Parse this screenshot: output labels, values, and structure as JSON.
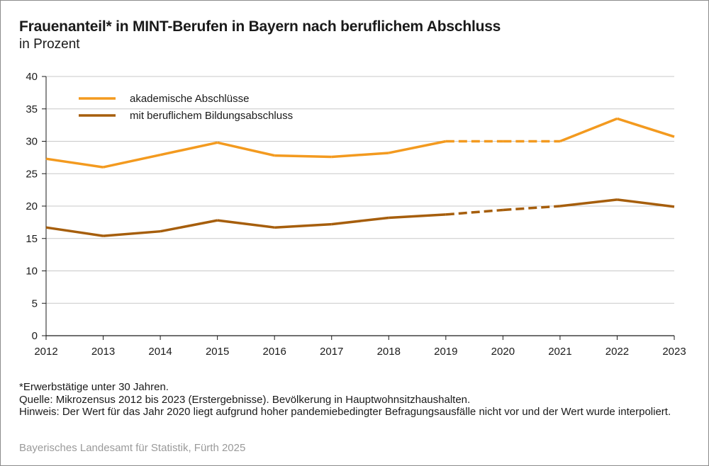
{
  "header": {
    "title": "Frauenanteil* in MINT-Berufen in Bayern nach beruflichem Abschluss",
    "subtitle": "in Prozent"
  },
  "footnotes": {
    "asterisk": "*Erwerbstätige unter 30 Jahren.",
    "source": "Quelle: Mikrozensus 2012 bis 2023 (Erstergebnisse). Bevölkerung in Hauptwohnsitzhaushalten.",
    "hint": "Hinweis: Der Wert für das Jahr 2020 liegt aufgrund hoher pandemiebedingter Befragungsausfälle nicht vor und der Wert wurde interpoliert."
  },
  "publisher": "Bayerisches Landesamt für Statistik, Fürth 2025",
  "colors": {
    "akademisch": "#f39a1f",
    "beruflich": "#a65e0c",
    "grid": "#c8c8c8",
    "axis": "#1a1a1a"
  },
  "chart_data": {
    "type": "line",
    "title": "Frauenanteil* in MINT-Berufen in Bayern nach beruflichem Abschluss",
    "subtitle": "in Prozent",
    "xlabel": "",
    "ylabel": "",
    "x": [
      "2012",
      "2013",
      "2014",
      "2015",
      "2016",
      "2017",
      "2018",
      "2019",
      "2020",
      "2021",
      "2022",
      "2023"
    ],
    "ylim": [
      0,
      40
    ],
    "yticks": [
      "0",
      "5",
      "10",
      "15",
      "20",
      "25",
      "30",
      "35",
      "40"
    ],
    "grid": true,
    "legend_position": "top-left",
    "interpolated_years": [
      "2020"
    ],
    "series": [
      {
        "name": "akademische Abschlüsse",
        "color": "#f39a1f",
        "values": [
          27.3,
          26.0,
          27.9,
          29.8,
          27.8,
          27.6,
          28.2,
          30.0,
          30.0,
          30.0,
          33.5,
          30.7
        ]
      },
      {
        "name": "mit beruflichem Bildungsabschluss",
        "color": "#a65e0c",
        "values": [
          16.7,
          15.4,
          16.1,
          17.8,
          16.7,
          17.2,
          18.2,
          18.7,
          19.4,
          20.0,
          21.0,
          19.9
        ]
      }
    ]
  }
}
